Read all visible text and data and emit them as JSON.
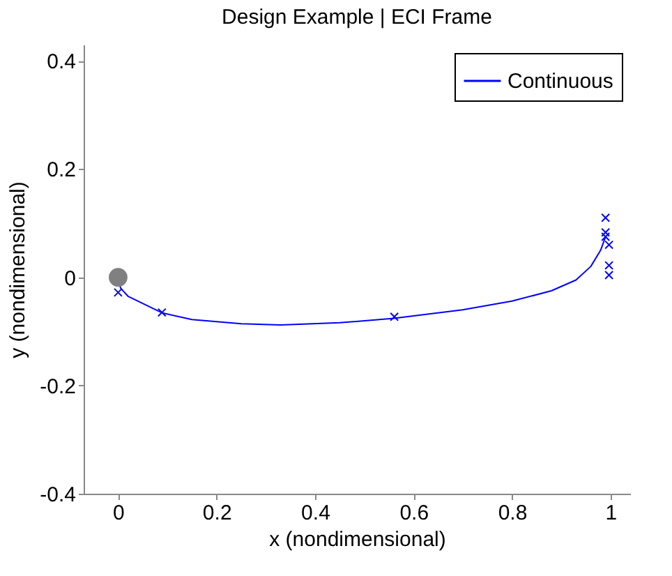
{
  "chart_data": {
    "type": "line",
    "title": "Design Example | ECI Frame",
    "xlabel": "x (nondimensional)",
    "ylabel": "y (nondimensional)",
    "xlim": [
      -0.07,
      1.04
    ],
    "ylim": [
      -0.4,
      0.43
    ],
    "xticks": [
      0,
      0.2,
      0.4,
      0.6,
      0.8,
      1
    ],
    "yticks": [
      -0.4,
      -0.2,
      0,
      0.2,
      0.4
    ],
    "grid": false,
    "legend": "top right",
    "series": [
      {
        "name": "Continuous",
        "type": "line",
        "color": "#0000ff",
        "marker": "none",
        "x": [
          0,
          0.005,
          0.02,
          0.09,
          0.15,
          0.25,
          0.33,
          0.45,
          0.56,
          0.7,
          0.8,
          0.88,
          0.93,
          0.96,
          0.98,
          0.99
        ],
        "values": [
          0,
          -0.02,
          -0.035,
          -0.066,
          -0.078,
          -0.086,
          -0.088,
          -0.084,
          -0.076,
          -0.06,
          -0.044,
          -0.025,
          -0.005,
          0.02,
          0.05,
          0.075
        ]
      },
      {
        "type": "scatter",
        "color": "#0000ff",
        "marker": "cross",
        "x": [
          0,
          0.089,
          0.561,
          0.99,
          0.99,
          0.99,
          0.997,
          0.997,
          0.997
        ],
        "values": [
          -0.028,
          -0.065,
          -0.073,
          0.11,
          0.083,
          0.075,
          0.06,
          0.022,
          0.004
        ]
      },
      {
        "type": "scatter",
        "color": "#808080",
        "marker": "circle",
        "x": [
          0
        ],
        "values": [
          0
        ]
      }
    ]
  }
}
